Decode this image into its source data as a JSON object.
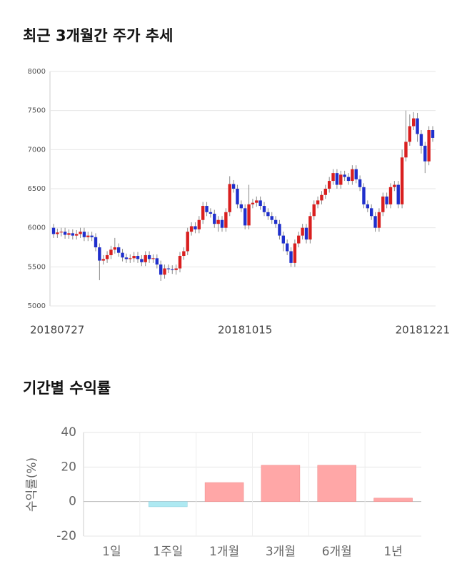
{
  "chart_data": [
    {
      "type": "candlestick",
      "title": "최근 3개월간 주가 추세",
      "categories": [
        "20180727",
        null,
        null,
        null,
        null,
        null,
        null,
        null,
        null,
        null,
        null,
        null,
        null,
        null,
        null,
        null,
        null,
        null,
        null,
        null,
        null,
        null,
        null,
        null,
        null,
        null,
        null,
        null,
        null,
        null,
        null,
        null,
        null,
        null,
        null,
        null,
        null,
        null,
        null,
        null,
        null,
        null,
        null,
        null,
        null,
        null,
        null,
        null,
        null,
        null,
        "20181015",
        null,
        null,
        null,
        null,
        null,
        null,
        null,
        null,
        null,
        null,
        null,
        null,
        null,
        null,
        null,
        null,
        null,
        null,
        null,
        null,
        null,
        null,
        null,
        null,
        null,
        null,
        null,
        null,
        null,
        null,
        null,
        null,
        null,
        null,
        null,
        null,
        null,
        null,
        null,
        null,
        null,
        null,
        null,
        null,
        null,
        null,
        null,
        null,
        "20181221"
      ],
      "open": [
        6000,
        5920,
        5940,
        5950,
        5910,
        5930,
        5900,
        5920,
        5950,
        5880,
        5900,
        5880,
        5750,
        5580,
        5600,
        5650,
        5720,
        5750,
        5680,
        5620,
        5600,
        5610,
        5640,
        5600,
        5560,
        5650,
        5600,
        5610,
        5530,
        5400,
        5480,
        5470,
        5460,
        5480,
        5640,
        5700,
        5950,
        6020,
        5980,
        6100,
        6280,
        6200,
        6180,
        6050,
        6100,
        6000,
        6200,
        6560,
        6500,
        6300,
        6250,
        6030,
        6300,
        6320,
        6350,
        6280,
        6200,
        6150,
        6100,
        6050,
        5900,
        5800,
        5700,
        5550,
        5800,
        5900,
        6000,
        5850,
        6150,
        6300,
        6350,
        6420,
        6500,
        6600,
        6700,
        6550,
        6680,
        6650,
        6600,
        6750,
        6620,
        6520,
        6300,
        6250,
        6150,
        6000,
        6200,
        6400,
        6300,
        6520,
        6550,
        6300,
        6900,
        7100,
        7300,
        7400,
        7200,
        7050,
        6850,
        7250
      ],
      "high": [
        6050,
        5990,
        6000,
        6000,
        5980,
        5980,
        5970,
        6000,
        6000,
        5950,
        5950,
        5930,
        5800,
        5650,
        5700,
        5770,
        5870,
        5800,
        5730,
        5670,
        5660,
        5690,
        5690,
        5650,
        5700,
        5700,
        5660,
        5660,
        5580,
        5530,
        5530,
        5520,
        5530,
        5690,
        5750,
        6000,
        6070,
        6070,
        6150,
        6330,
        6330,
        6250,
        6230,
        6150,
        6150,
        6250,
        6660,
        6610,
        6550,
        6350,
        6300,
        6550,
        6370,
        6400,
        6400,
        6330,
        6250,
        6200,
        6150,
        6100,
        5950,
        5850,
        5750,
        5850,
        5950,
        6050,
        6050,
        6200,
        6350,
        6400,
        6470,
        6550,
        6650,
        6750,
        6750,
        6730,
        6730,
        6700,
        6800,
        6800,
        6670,
        6570,
        6350,
        6300,
        6200,
        6250,
        6450,
        6450,
        6570,
        6600,
        6600,
        7000,
        7500,
        7450,
        7480,
        7470,
        7250,
        7100,
        7300,
        7300
      ],
      "low": [
        5870,
        5870,
        5890,
        5860,
        5860,
        5850,
        5850,
        5870,
        5830,
        5830,
        5830,
        5700,
        5330,
        5530,
        5550,
        5600,
        5670,
        5630,
        5570,
        5550,
        5550,
        5560,
        5550,
        5510,
        5510,
        5550,
        5550,
        5480,
        5320,
        5350,
        5420,
        5410,
        5400,
        5430,
        5590,
        5650,
        5900,
        5930,
        5930,
        6050,
        6150,
        6130,
        6000,
        5950,
        5950,
        5950,
        6150,
        6450,
        6250,
        6200,
        5980,
        5980,
        6250,
        6270,
        6230,
        6150,
        6100,
        6050,
        6000,
        5850,
        5700,
        5650,
        5500,
        5500,
        5750,
        5850,
        5800,
        5800,
        6100,
        6250,
        6300,
        6370,
        6450,
        6550,
        6500,
        6500,
        6600,
        6550,
        6550,
        6570,
        6470,
        6250,
        6200,
        6100,
        5950,
        5950,
        6150,
        6250,
        6250,
        6470,
        6250,
        6250,
        6850,
        7050,
        7250,
        7100,
        6950,
        6700,
        6800,
        7100
      ],
      "close": [
        5920,
        5940,
        5950,
        5910,
        5930,
        5900,
        5920,
        5950,
        5880,
        5900,
        5880,
        5750,
        5580,
        5600,
        5650,
        5720,
        5750,
        5680,
        5620,
        5600,
        5610,
        5640,
        5600,
        5560,
        5650,
        5600,
        5610,
        5530,
        5400,
        5480,
        5470,
        5460,
        5480,
        5640,
        5700,
        5950,
        6020,
        5980,
        6100,
        6280,
        6200,
        6180,
        6050,
        6100,
        6000,
        6200,
        6560,
        6500,
        6300,
        6250,
        6030,
        6300,
        6320,
        6350,
        6280,
        6200,
        6150,
        6100,
        6050,
        5900,
        5800,
        5700,
        5550,
        5800,
        5900,
        6000,
        5850,
        6150,
        6300,
        6350,
        6420,
        6500,
        6600,
        6700,
        6550,
        6680,
        6650,
        6600,
        6750,
        6620,
        6520,
        6300,
        6250,
        6150,
        6000,
        6200,
        6400,
        6300,
        6520,
        6550,
        6300,
        6900,
        7100,
        7300,
        7400,
        7200,
        7050,
        6850,
        7250,
        7150
      ],
      "up_color": "#d91f1f",
      "down_color": "#1f2fcc",
      "ylim": [
        5000,
        8000
      ],
      "yticks": [
        5000,
        5500,
        6000,
        6500,
        7000,
        7500,
        8000
      ],
      "grid": true
    },
    {
      "type": "bar",
      "title": "기간별 수익률",
      "y_label": "수익률(%)",
      "categories": [
        "1일",
        "1주일",
        "1개월",
        "3개월",
        "6개월",
        "1년"
      ],
      "values": [
        0,
        -3,
        11,
        21,
        21,
        2
      ],
      "positive_color": "#ffa7a7",
      "negative_color": "#aee9f2",
      "ylim": [
        -20,
        40
      ],
      "yticks": [
        -20,
        0,
        20,
        40
      ],
      "grid": true
    }
  ]
}
